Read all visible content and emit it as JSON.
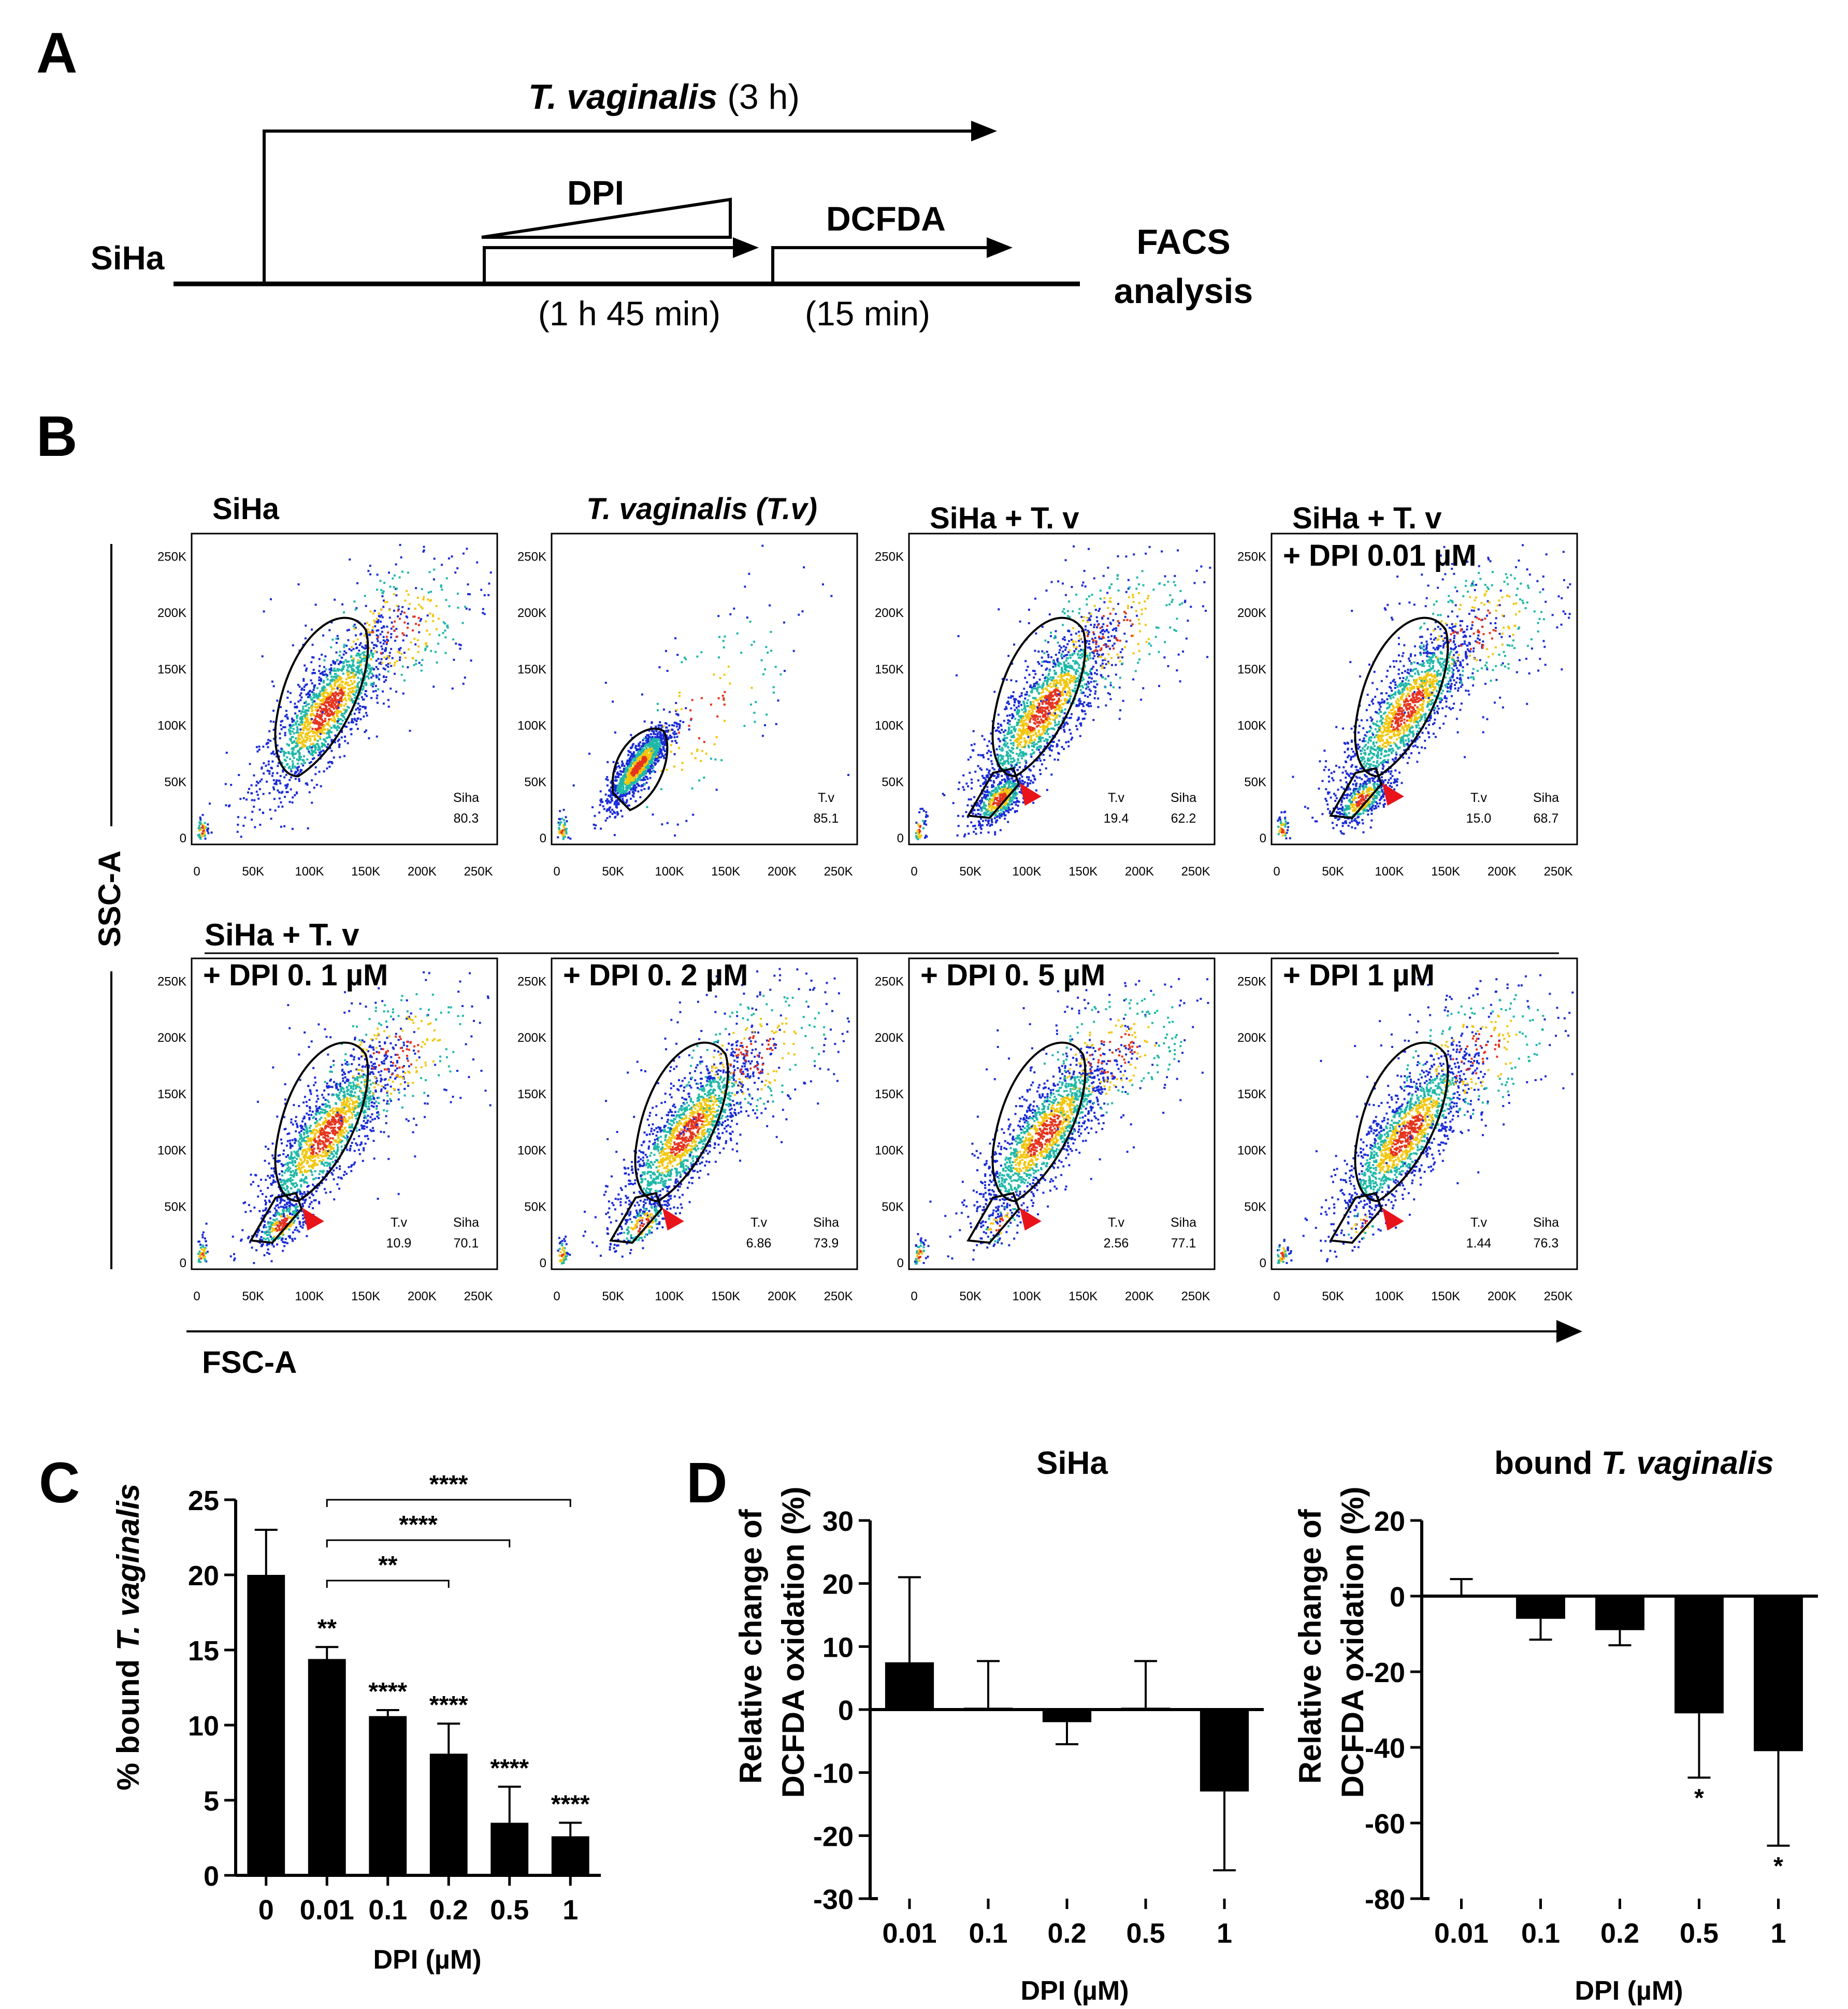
{
  "colors": {
    "ink": "#000000",
    "marker": "#e8141a",
    "dens_low": "#1a2bd6",
    "dens_mid": "#1fb8a8",
    "dens_high": "#f2c60d",
    "dens_peak": "#e5341e"
  },
  "panelA": {
    "letter": "A",
    "tv_italic": "T. vaginalis",
    "tv_rest": " (3 h)",
    "dpi": "DPI",
    "dcfda": "DCFDA",
    "siha": "SiHa",
    "facs_line1": "FACS",
    "facs_line2": "analysis",
    "time1": "(1 h 45 min)",
    "time2": "(15 min)"
  },
  "panelB": {
    "letter": "B",
    "y_axis": "SSC-A",
    "x_axis": "FSC-A",
    "x_ticks": [
      "0",
      "50K",
      "100K",
      "150K",
      "200K",
      "250K"
    ],
    "y_ticks": [
      "0",
      "50K",
      "100K",
      "150K",
      "200K",
      "250K"
    ],
    "row2_header": "SiHa + T. v",
    "plots": [
      {
        "title": "SiHa",
        "gates": [
          {
            "name": "Siha",
            "value": "80.3"
          }
        ]
      },
      {
        "title": "T. vaginalis (T.v)",
        "gates": [
          {
            "name": "T.v",
            "value": "85.1"
          }
        ]
      },
      {
        "title": "SiHa + T. v",
        "gates": [
          {
            "name": "T.v",
            "value": "19.4"
          },
          {
            "name": "Siha",
            "value": "62.2"
          }
        ]
      },
      {
        "title": "SiHa + T. v",
        "title2": "+ DPI 0.01 µM",
        "gates": [
          {
            "name": "T.v",
            "value": "15.0"
          },
          {
            "name": "Siha",
            "value": "68.7"
          }
        ]
      },
      {
        "title": "+ DPI 0. 1 µM",
        "gates": [
          {
            "name": "T.v",
            "value": "10.9"
          },
          {
            "name": "Siha",
            "value": "70.1"
          }
        ]
      },
      {
        "title": "+ DPI 0. 2 µM",
        "gates": [
          {
            "name": "T.v",
            "value": "6.86"
          },
          {
            "name": "Siha",
            "value": "73.9"
          }
        ]
      },
      {
        "title": "+ DPI 0. 5 µM",
        "gates": [
          {
            "name": "T.v",
            "value": "2.56"
          },
          {
            "name": "Siha",
            "value": "77.1"
          }
        ]
      },
      {
        "title": "+ DPI 1 µM",
        "gates": [
          {
            "name": "T.v",
            "value": "1.44"
          },
          {
            "name": "Siha",
            "value": "76.3"
          }
        ]
      }
    ]
  },
  "panelC": {
    "letter": "C"
  },
  "panelD": {
    "letter": "D"
  },
  "chart_data": [
    {
      "id": "C",
      "type": "bar",
      "title": "",
      "xlabel": "DPI (µM)",
      "ylabel": "% bound T. vaginalis",
      "categories": [
        "0",
        "0.01",
        "0.1",
        "0.2",
        "0.5",
        "1"
      ],
      "values": [
        20.0,
        14.4,
        10.6,
        8.1,
        3.5,
        2.6
      ],
      "errors": [
        3.0,
        0.8,
        0.4,
        2.0,
        2.4,
        0.9
      ],
      "ylim": [
        0,
        25
      ],
      "yticks": [
        "0",
        "5",
        "10",
        "15",
        "20",
        "25"
      ],
      "bar_labels": [
        "",
        "**",
        "****",
        "****",
        "****",
        "****"
      ],
      "brackets": [
        {
          "from": "0.01",
          "to": "0.2",
          "label": "**"
        },
        {
          "from": "0.01",
          "to": "0.5",
          "label": "****"
        },
        {
          "from": "0.01",
          "to": "1",
          "label": "****"
        }
      ]
    },
    {
      "id": "D1",
      "type": "bar",
      "title": "SiHa",
      "xlabel": "DPI (µM)",
      "ylabel_line1": "Relative change of",
      "ylabel_line2": "DCFDA oxidation (%)",
      "categories": [
        "0.01",
        "0.1",
        "0.2",
        "0.5",
        "1"
      ],
      "values": [
        7.5,
        0.3,
        -2.0,
        0.3,
        -13.0
      ],
      "errors": [
        13.5,
        7.4,
        3.5,
        7.4,
        12.5
      ],
      "ylim": [
        -30,
        30
      ],
      "yticks": [
        "-30",
        "-20",
        "-10",
        "0",
        "10",
        "20",
        "30"
      ],
      "bar_labels": [
        "",
        "",
        "",
        "",
        ""
      ]
    },
    {
      "id": "D2",
      "type": "bar",
      "title_plain": "bound ",
      "title_italic": "T. vaginalis",
      "xlabel": "DPI (µM)",
      "ylabel_line1": "Relative change of",
      "ylabel_line2": "DCFDA oxidation (%)",
      "categories": [
        "0.01",
        "0.1",
        "0.2",
        "0.5",
        "1"
      ],
      "values": [
        0.0,
        -6.0,
        -9.0,
        -31.0,
        -41.0
      ],
      "errors": [
        4.5,
        5.5,
        4.0,
        17.0,
        25.0
      ],
      "ylim": [
        -80,
        20
      ],
      "yticks": [
        "-80",
        "-60",
        "-40",
        "-20",
        "0",
        "20"
      ],
      "bar_labels": [
        "",
        "",
        "",
        "*",
        "*"
      ]
    }
  ]
}
